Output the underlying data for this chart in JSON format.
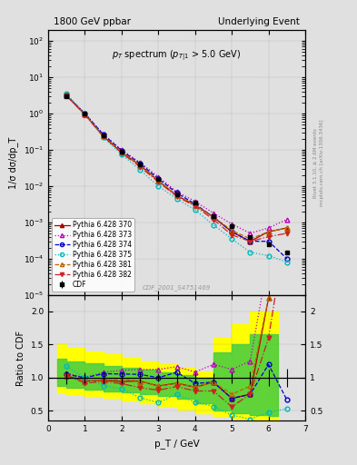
{
  "title_left": "1800 GeV ppbar",
  "title_right": "Underlying Event",
  "ylabel_main": "1/σ dσ/dp_T",
  "ylabel_ratio": "Ratio to CDF",
  "xlabel": "p_T / GeV",
  "watermark": "CDF_2001_S4751469",
  "right_label_top": "Rivet 3.1.10, ≥ 2.6M events",
  "right_label_bot": "mcplots.cern.ch [arXiv:1306.3436]",
  "pt_cdf": [
    0.5,
    1.0,
    1.5,
    2.0,
    2.5,
    3.0,
    3.5,
    4.0,
    4.5,
    5.0,
    5.5,
    6.0,
    6.5
  ],
  "val_cdf": [
    3.0,
    1.0,
    0.25,
    0.09,
    0.04,
    0.016,
    0.006,
    0.0035,
    0.0015,
    0.0008,
    0.0004,
    0.00025,
    0.00015
  ],
  "err_cdf": [
    0.3,
    0.08,
    0.02,
    0.007,
    0.003,
    0.001,
    0.0005,
    0.0003,
    0.0001,
    7e-05,
    4e-05,
    3e-05,
    2e-05
  ],
  "pt_mc": [
    0.5,
    1.0,
    1.5,
    2.0,
    2.5,
    3.0,
    3.5,
    4.0,
    4.5,
    5.0,
    5.5,
    6.0,
    6.5
  ],
  "val_370": [
    3.1,
    0.95,
    0.24,
    0.085,
    0.038,
    0.014,
    0.0055,
    0.003,
    0.0014,
    0.00055,
    0.0003,
    0.00055,
    0.0007
  ],
  "val_373": [
    3.2,
    1.0,
    0.27,
    0.1,
    0.045,
    0.018,
    0.007,
    0.0038,
    0.0018,
    0.0009,
    0.0005,
    0.0007,
    0.0012
  ],
  "val_374": [
    3.15,
    1.0,
    0.265,
    0.095,
    0.042,
    0.016,
    0.0065,
    0.0032,
    0.0014,
    0.00055,
    0.0003,
    0.0003,
    0.0001
  ],
  "val_375": [
    3.5,
    1.0,
    0.22,
    0.075,
    0.028,
    0.01,
    0.0045,
    0.0022,
    0.00085,
    0.00035,
    0.00015,
    0.00012,
    8e-05
  ],
  "val_381": [
    3.1,
    0.95,
    0.24,
    0.088,
    0.038,
    0.014,
    0.0055,
    0.003,
    0.0014,
    0.0006,
    0.00035,
    0.00055,
    0.0007
  ],
  "val_382": [
    3.1,
    0.92,
    0.235,
    0.082,
    0.034,
    0.013,
    0.0052,
    0.0028,
    0.0012,
    0.00045,
    0.0003,
    0.0004,
    0.0005
  ],
  "ratio_370": [
    1.03,
    0.95,
    0.96,
    0.944,
    0.95,
    0.875,
    0.917,
    0.857,
    0.933,
    0.688,
    0.75,
    2.2,
    4.67
  ],
  "ratio_373": [
    1.07,
    1.0,
    1.08,
    1.111,
    1.125,
    1.125,
    1.167,
    1.086,
    1.2,
    1.125,
    1.25,
    2.8,
    8.0
  ],
  "ratio_374": [
    1.05,
    1.0,
    1.06,
    1.056,
    1.05,
    1.0,
    1.083,
    0.914,
    0.933,
    0.688,
    0.75,
    1.2,
    0.667
  ],
  "ratio_375": [
    1.17,
    1.0,
    0.88,
    0.833,
    0.7,
    0.625,
    0.75,
    0.629,
    0.567,
    0.4375,
    0.375,
    0.48,
    0.533
  ],
  "ratio_381": [
    1.03,
    0.95,
    0.96,
    0.978,
    0.95,
    0.875,
    0.917,
    0.857,
    0.933,
    0.75,
    0.875,
    2.2,
    4.67
  ],
  "ratio_382": [
    1.03,
    0.92,
    0.94,
    0.911,
    0.85,
    0.8125,
    0.867,
    0.8,
    0.8,
    0.5625,
    0.75,
    1.6,
    3.33
  ],
  "band_yellow_x": [
    0.25,
    0.75,
    1.25,
    1.75,
    2.25,
    2.75,
    3.25,
    3.75,
    4.25,
    4.75,
    5.25,
    5.75,
    6.25
  ],
  "band_yellow_lo": [
    0.78,
    0.75,
    0.72,
    0.7,
    0.66,
    0.62,
    0.58,
    0.52,
    0.47,
    0.42,
    0.38,
    0.35,
    0.32
  ],
  "band_yellow_hi": [
    1.5,
    1.45,
    1.4,
    1.35,
    1.3,
    1.25,
    1.2,
    1.15,
    1.1,
    1.6,
    1.8,
    2.0,
    2.0
  ],
  "band_green_lo": [
    0.88,
    0.85,
    0.82,
    0.8,
    0.78,
    0.75,
    0.72,
    0.68,
    0.62,
    0.5,
    0.47,
    0.44,
    0.42
  ],
  "band_green_hi": [
    1.28,
    1.25,
    1.22,
    1.18,
    1.15,
    1.12,
    1.08,
    1.04,
    1.0,
    1.38,
    1.5,
    1.65,
    1.65
  ],
  "color_cdf": "#000000",
  "color_370": "#aa0000",
  "color_373": "#bb00bb",
  "color_374": "#0000cc",
  "color_375": "#00bbbb",
  "color_381": "#bb6600",
  "color_382": "#cc2222",
  "xlim": [
    0,
    7.0
  ],
  "ylim_main": [
    1e-05,
    200
  ],
  "ylim_ratio": [
    0.35,
    2.25
  ],
  "bg_color": "#e0e0e0"
}
